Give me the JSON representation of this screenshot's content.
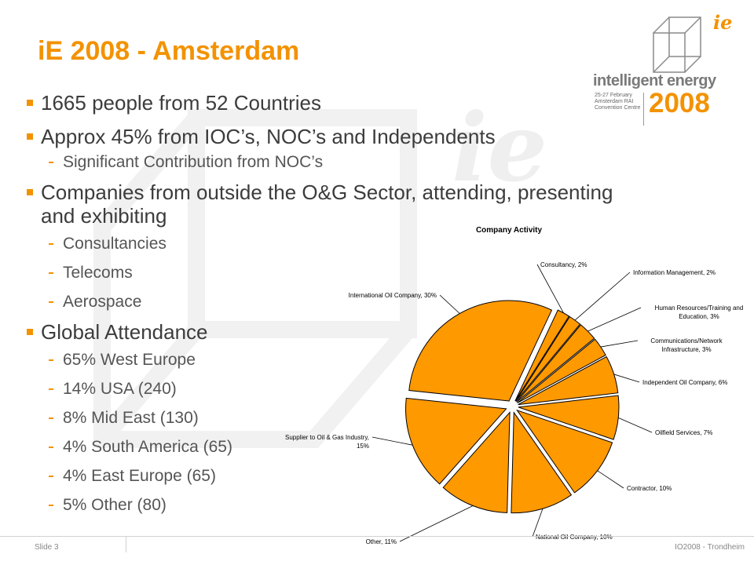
{
  "slide": {
    "title": "iE 2008 - Amsterdam",
    "slide_number": "Slide 3",
    "footer_right": "IO2008 - Trondheim"
  },
  "logo": {
    "mark": "ie",
    "name": "intelligent energy",
    "dates": "25-27 February",
    "venue1": "Amsterdam RAI",
    "venue2": "Convention Centre",
    "year": "2008"
  },
  "watermark": "ie",
  "bullets": [
    {
      "level": 1,
      "text": "1665 people from 52 Countries"
    },
    {
      "level": 1,
      "text": "Approx 45% from IOC’s, NOC’s and Independents"
    },
    {
      "level": 2,
      "text": "Significant Contribution from NOC’s"
    },
    {
      "level": 1,
      "text": "Companies from outside the O&G Sector, attending, presenting and exhibiting"
    },
    {
      "level": 2,
      "text": "Consultancies"
    },
    {
      "level": 2,
      "text": "Telecoms"
    },
    {
      "level": 2,
      "text": "Aerospace"
    },
    {
      "level": 1,
      "text": "Global Attendance"
    },
    {
      "level": 2,
      "text": "65% West Europe"
    },
    {
      "level": 2,
      "text": "14% USA (240)"
    },
    {
      "level": 2,
      "text": "8% Mid East (130)"
    },
    {
      "level": 2,
      "text": "4% South America (65)"
    },
    {
      "level": 2,
      "text": "4% East Europe (65)"
    },
    {
      "level": 2,
      "text": "5% Other (80)"
    }
  ],
  "colors": {
    "accent": "#f39200",
    "slice": "#ff9900",
    "text": "#3c3c3c"
  },
  "chart_data": {
    "type": "pie",
    "title": "Company Activity",
    "slices": [
      {
        "label": "International Oil Company, 30%",
        "value": 30
      },
      {
        "label": "Consultancy, 2%",
        "value": 2
      },
      {
        "label": "Information Management, 2%",
        "value": 2
      },
      {
        "label": "Human Resources/Training and Education, 3%",
        "value": 3
      },
      {
        "label": "Communications/Network Infrastructure, 3%",
        "value": 3
      },
      {
        "label": "Independent Oil Company, 6%",
        "value": 6
      },
      {
        "label": "Oilfield Services, 7%",
        "value": 7
      },
      {
        "label": "Contractor, 10%",
        "value": 10
      },
      {
        "label": "National Oil Company, 10%",
        "value": 10
      },
      {
        "label": "Other, 11%",
        "value": 11
      },
      {
        "label": "Supplier to Oil & Gas Industry, 15%",
        "value": 15
      }
    ]
  }
}
